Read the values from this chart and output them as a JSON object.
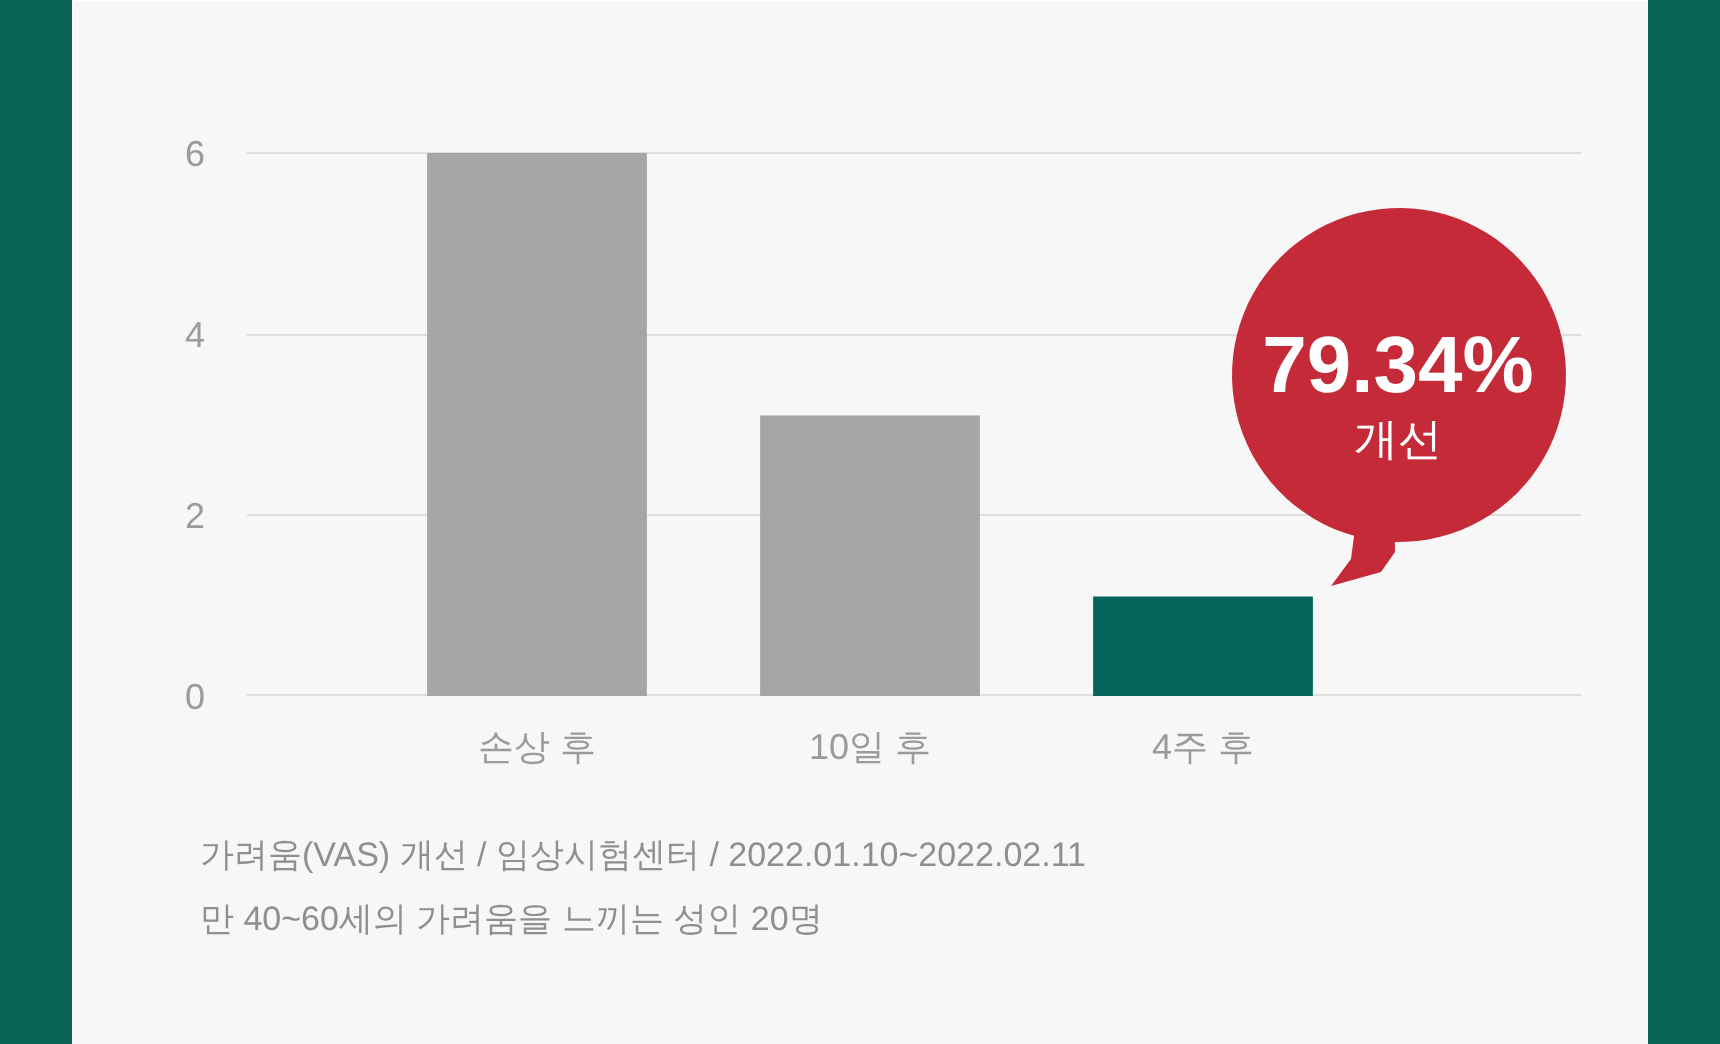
{
  "chart_data": {
    "type": "bar",
    "categories": [
      "손상 후",
      "10일 후",
      "4주 후"
    ],
    "values": [
      6.0,
      3.1,
      1.1
    ],
    "colors": [
      "#a6a6a6",
      "#a6a6a6",
      "#07645a"
    ],
    "ylim": [
      -0.1,
      6.2
    ],
    "yticks": [
      0,
      2,
      4,
      6
    ],
    "grid": "y",
    "annotations": [
      {
        "text": "79.34%\n개선",
        "x": "4주 후",
        "y": 1.1
      },
      "가려움(VAS) 개선 / 임상시험센터 / 2022.01.10~2022.02.11",
      "만 40~60세의 가려움을 느끼는 성인 20명"
    ]
  }
}
